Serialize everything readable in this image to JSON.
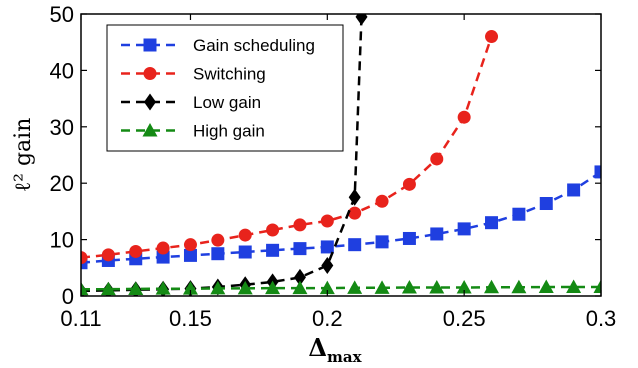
{
  "chart_data": {
    "type": "line",
    "xlabel": "Δ",
    "xlabel_sub": "max",
    "ylabel": "ℓ² gain",
    "xlim": [
      0.11,
      0.3
    ],
    "ylim": [
      0,
      50
    ],
    "x_ticks": [
      {
        "value": 0.11,
        "label": "0.11"
      },
      {
        "value": 0.15,
        "label": "0.15"
      },
      {
        "value": 0.2,
        "label": "0.2"
      },
      {
        "value": 0.25,
        "label": "0.25"
      },
      {
        "value": 0.3,
        "label": "0.3"
      }
    ],
    "y_ticks": [
      {
        "value": 0,
        "label": "0"
      },
      {
        "value": 10,
        "label": "10"
      },
      {
        "value": 20,
        "label": "20"
      },
      {
        "value": 30,
        "label": "30"
      },
      {
        "value": 40,
        "label": "40"
      },
      {
        "value": 50,
        "label": "50"
      }
    ],
    "grid": false,
    "legend_position": "top-left",
    "series": [
      {
        "name": "Gain scheduling",
        "color": "#1f3fe0",
        "marker": "square",
        "points": [
          [
            0.11,
            5.9
          ],
          [
            0.12,
            6.3
          ],
          [
            0.13,
            6.6
          ],
          [
            0.14,
            6.9
          ],
          [
            0.15,
            7.2
          ],
          [
            0.16,
            7.5
          ],
          [
            0.17,
            7.8
          ],
          [
            0.18,
            8.1
          ],
          [
            0.19,
            8.4
          ],
          [
            0.2,
            8.7
          ],
          [
            0.21,
            9.1
          ],
          [
            0.22,
            9.6
          ],
          [
            0.23,
            10.2
          ],
          [
            0.24,
            11.0
          ],
          [
            0.25,
            11.9
          ],
          [
            0.26,
            13.0
          ],
          [
            0.27,
            14.5
          ],
          [
            0.28,
            16.4
          ],
          [
            0.29,
            18.8
          ],
          [
            0.3,
            22.0
          ]
        ]
      },
      {
        "name": "Switching",
        "color": "#e8231c",
        "marker": "circle",
        "points": [
          [
            0.11,
            6.8
          ],
          [
            0.12,
            7.3
          ],
          [
            0.13,
            7.9
          ],
          [
            0.14,
            8.5
          ],
          [
            0.15,
            9.1
          ],
          [
            0.16,
            9.9
          ],
          [
            0.17,
            10.8
          ],
          [
            0.18,
            11.7
          ],
          [
            0.19,
            12.6
          ],
          [
            0.2,
            13.3
          ],
          [
            0.21,
            14.7
          ],
          [
            0.22,
            16.8
          ],
          [
            0.23,
            19.8
          ],
          [
            0.24,
            24.3
          ],
          [
            0.25,
            31.7
          ],
          [
            0.26,
            46.0
          ]
        ]
      },
      {
        "name": "Low gain",
        "color": "#000000",
        "marker": "diamond",
        "points": [
          [
            0.11,
            0.9
          ],
          [
            0.12,
            1.0
          ],
          [
            0.13,
            1.1
          ],
          [
            0.14,
            1.2
          ],
          [
            0.15,
            1.3
          ],
          [
            0.16,
            1.6
          ],
          [
            0.17,
            2.0
          ],
          [
            0.18,
            2.5
          ],
          [
            0.19,
            3.3
          ],
          [
            0.2,
            5.4
          ],
          [
            0.21,
            17.5
          ],
          [
            0.2125,
            49.5
          ]
        ]
      },
      {
        "name": "High gain",
        "color": "#148a14",
        "marker": "triangle",
        "points": [
          [
            0.11,
            1.2
          ],
          [
            0.12,
            1.2
          ],
          [
            0.13,
            1.25
          ],
          [
            0.14,
            1.3
          ],
          [
            0.15,
            1.3
          ],
          [
            0.16,
            1.35
          ],
          [
            0.17,
            1.35
          ],
          [
            0.18,
            1.4
          ],
          [
            0.19,
            1.4
          ],
          [
            0.2,
            1.4
          ],
          [
            0.21,
            1.45
          ],
          [
            0.22,
            1.45
          ],
          [
            0.23,
            1.5
          ],
          [
            0.24,
            1.5
          ],
          [
            0.25,
            1.5
          ],
          [
            0.26,
            1.55
          ],
          [
            0.27,
            1.55
          ],
          [
            0.28,
            1.6
          ],
          [
            0.29,
            1.6
          ],
          [
            0.3,
            1.6
          ]
        ]
      }
    ]
  }
}
